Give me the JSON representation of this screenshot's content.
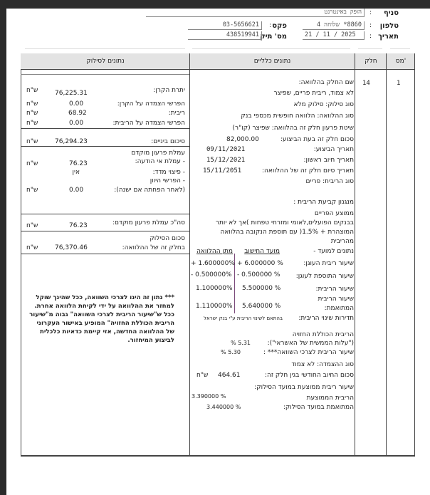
{
  "header": {
    "branch_label": "סניף",
    "branch_value": "הופק באינטרנט",
    "phone_label": "טלפון",
    "phone_value": "8860* שלוחה 4",
    "fax_label": "פקס",
    "fax_value": "03-5656621",
    "date_label": "תאריך",
    "date_value": "21 / 11 / 2025",
    "file_label": "מס' תיק",
    "file_value": "438519941",
    "colon": ":"
  },
  "table": {
    "headers": {
      "num": "מס'",
      "part": "חלק",
      "general": "נתונים כלליים",
      "payoff": "נתונים לסילוק"
    },
    "row_num": "1",
    "part": "14"
  },
  "general": {
    "part_name_label": "שם החלק בהלוואה:",
    "part_name_value": "לא צמוד, ריבית פריים, שפיצר",
    "payoff_type": "סוג סילוק:  סילוק מלא",
    "loan_type": "סוג ההלוואה:  הלוואה חופשית מכספי בנק",
    "repay_method": "שיטת פרעון חלק זה בהלוואה: שפיצר (קו\"ר)",
    "amount_label": "סכום חלק זה בעת הביצוע:",
    "amount_value": "82,000.00",
    "exec_date_label": "תאריך הביצוע:",
    "exec_date_value": "09/11/2021",
    "first_charge_label": "תאריך חיוב ראשון:",
    "first_charge_value": "15/12/2021",
    "end_date_label": "תאריך סיום חלק זה של ההלוואה:",
    "end_date_value": "15/11/2051",
    "rate_type": "סוג הריבית:  פריים",
    "mechanism_title": "מנגנון קביעת הריבית :",
    "mechanism_lines": [
      "ממוצע הפריים",
      "בבנקים הפועלים,לאומי ומזרחי טפחות )אך לא יותר",
      "המוצהרת + 1.5%( עם תוספת הנקובה בהלוואה",
      "מהריבית"
    ],
    "rates_header": {
      "label": "נתונים למועד -",
      "calc": "מועד החישוב",
      "grant": "מתן ההלוואה"
    },
    "rates": [
      {
        "label": "שיעור ריבית העוגן:",
        "calc": "+ 6.000000 %",
        "grant": "+ 1.600000%"
      },
      {
        "label": "שיעור התוספת לעוגן:",
        "calc": "- 0.500000 %",
        "grant": "- 0.500000%"
      },
      {
        "label": "שיעור הריבית:",
        "calc": "5.500000 %",
        "grant": "1.100000%"
      },
      {
        "label": "שיעור הריבית",
        "label2": "המתואמת:",
        "calc": "5.640000 %",
        "grant": "1.110000%"
      }
    ],
    "frequency_label": "תדירות שינוי הריבית:",
    "frequency_value": "בהתאם לשינוי הריבית ע\"י בנק ישראל",
    "expected_rate_title": "הריבית הכוללת החזויה",
    "effective_cost_label": "(\"עלות הממשית של האשראי\"):",
    "effective_cost_value": "5.31 %",
    "compare_rate_label": "שיעור הריבית לצרכי השוואה*** :",
    "compare_rate_value": "5.30 %",
    "indexation": "סוג ההצמדה:  לא צמוד",
    "monthly_label": "סכום החיוב החודשי בגין חלק זה:",
    "monthly_value": "464.61",
    "monthly_currency": "ש\"ח",
    "avg_rate_label": "שיעור ריבית ממוצעת במועד הסילוק:",
    "avg_rate_value": "3.390000 %",
    "avg_adj_label1": "הריבית הממוצעת",
    "avg_adj_label2": "המתואמת במועד הסילוק:",
    "avg_adj_value": "3.440000  %"
  },
  "payoff": {
    "currency": "ש\"ח",
    "principal_label": "יתרת הקרן:",
    "principal_value": "76,225.31",
    "principal_index_label": "הפרשי הצמדה על הקרן:",
    "principal_index_value": "0.00",
    "interest_label": "ריבית:",
    "interest_value": "68.92",
    "interest_index_label": "הפרשי הצמדה על הריבית:",
    "interest_index_value": "0.00",
    "subtotal_label": "סיכום ביניים:",
    "subtotal_value": "76,294.23",
    "prepay_title": "עמלת פרעון מוקדם",
    "no_notice_label": "- עמלת אי הודעה:",
    "no_notice_value": "76.23",
    "index_comp_label": "- פיצוי מדד:",
    "index_comp_value": "אין",
    "discount_label": "- הפרשי היוון",
    "discount_label2": "(לאחר הפחתה אם ישנה):",
    "discount_value": "0.00",
    "total_prepay_label": "סה\"כ עמלת פרעון מוקדם:",
    "total_prepay_value": "76.23",
    "payoff_label1": "סכום הסילוק",
    "payoff_label2": "בחלק זה של ההלוואה:",
    "payoff_value": "76,370.46",
    "note": "*** נתון זה הינו לצרכי השוואה, ככל שהינך שוקל למחזר את ההלוואה על ידי לקיחת הלוואה אחרת. ככל ש\"שיעור הריבית לצרכי השוואה\" גבוה מ\"שיעור הריבית הכוללת החזויה\" המופיע באישור העקרוני של ההלוואה החדשה, אזי קיימת כדאיות כלכלית לביצוע המיחזור."
  }
}
